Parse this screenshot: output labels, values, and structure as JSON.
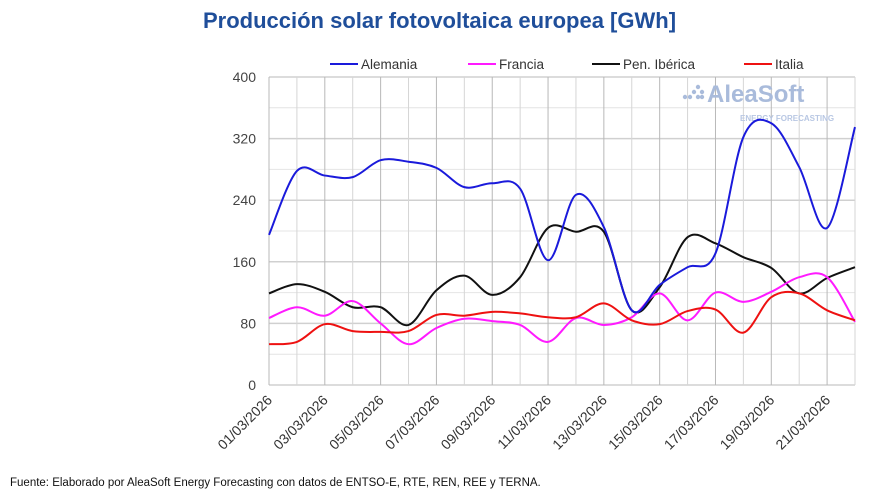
{
  "chart_data": {
    "type": "line",
    "title": "Producción solar fotovoltaica europea [GWh]",
    "xlabel": "",
    "ylabel": "",
    "ylim": [
      0,
      400
    ],
    "yticks": [
      0,
      80,
      160,
      240,
      320,
      400
    ],
    "grid": true,
    "legend_position": "top",
    "x": [
      "01/03/2026",
      "02/03/2026",
      "03/03/2026",
      "04/03/2026",
      "05/03/2026",
      "06/03/2026",
      "07/03/2026",
      "08/03/2026",
      "09/03/2026",
      "10/03/2026",
      "11/03/2026",
      "12/03/2026",
      "13/03/2026",
      "14/03/2026",
      "15/03/2026",
      "16/03/2026",
      "17/03/2026",
      "18/03/2026",
      "19/03/2026",
      "20/03/2026",
      "21/03/2026",
      "22/03/2026"
    ],
    "xtick_labels": [
      "01/03/2026",
      "03/03/2026",
      "05/03/2026",
      "07/03/2026",
      "09/03/2026",
      "11/03/2026",
      "13/03/2026",
      "15/03/2026",
      "17/03/2026",
      "19/03/2026",
      "21/03/2026"
    ],
    "series": [
      {
        "name": "Alemania",
        "color": "#1a1adb",
        "values": [
          195,
          278,
          272,
          270,
          292,
          290,
          282,
          257,
          262,
          255,
          162,
          247,
          205,
          97,
          130,
          153,
          171,
          322,
          340,
          283,
          204,
          335
        ]
      },
      {
        "name": "Francia",
        "color": "#ff1aff",
        "values": [
          87,
          101,
          90,
          109,
          80,
          53,
          74,
          86,
          83,
          78,
          56,
          87,
          78,
          88,
          119,
          84,
          120,
          108,
          121,
          140,
          140,
          82
        ]
      },
      {
        "name": "Pen. Ibérica",
        "color": "#111111",
        "values": [
          119,
          131,
          121,
          101,
          101,
          78,
          123,
          142,
          117,
          140,
          204,
          199,
          199,
          97,
          127,
          192,
          184,
          166,
          152,
          119,
          139,
          153
        ]
      },
      {
        "name": "Italia",
        "color": "#ee1111",
        "values": [
          53,
          56,
          79,
          70,
          69,
          70,
          91,
          90,
          95,
          93,
          88,
          88,
          106,
          84,
          79,
          96,
          98,
          68,
          114,
          119,
          97,
          84
        ]
      }
    ]
  },
  "watermark": {
    "brand": "AleaSoft",
    "tagline": "ENERGY FORECASTING"
  },
  "source": "Fuente: Elaborado por AleaSoft Energy Forecasting con datos de ENTSO-E, RTE, REN, REE y TERNA."
}
